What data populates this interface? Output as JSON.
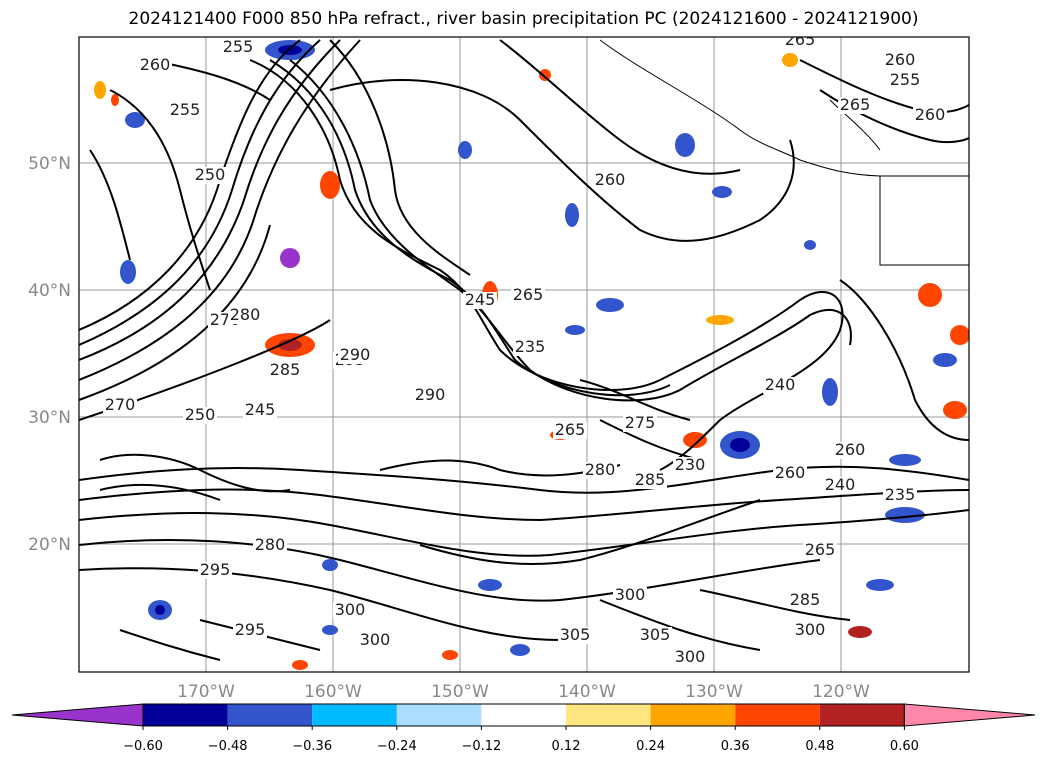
{
  "title": "2024121400 F000 850 hPa refract., river basin precipitation PC (2024121600 - 2024121900)",
  "map": {
    "lat_labels": [
      "50°N",
      "40°N",
      "30°N",
      "20°N"
    ],
    "lon_labels": [
      "170°W",
      "160°W",
      "150°W",
      "140°W",
      "130°W",
      "120°W"
    ],
    "gridlines": true,
    "contour_labels": [
      "255",
      "260",
      "255",
      "265",
      "260",
      "245",
      "250",
      "265",
      "270",
      "280",
      "285",
      "295",
      "290",
      "245",
      "250",
      "235",
      "240",
      "260",
      "265",
      "275",
      "280",
      "285",
      "230",
      "235",
      "240",
      "260",
      "265",
      "270",
      "280",
      "290",
      "295",
      "300",
      "305",
      "300",
      "285",
      "300",
      "295",
      "300",
      "305",
      "300",
      "260",
      "255",
      "265",
      "260"
    ]
  },
  "colorbar": {
    "ticks": [
      "−0.60",
      "−0.48",
      "−0.36",
      "−0.24",
      "−0.12",
      "0.12",
      "0.24",
      "0.36",
      "0.48",
      "0.60"
    ],
    "colors": [
      "#9933cc",
      "#000099",
      "#3355cc",
      "#00bbff",
      "#aaddff",
      "#ffffff",
      "#ffe680",
      "#ffa500",
      "#ff4500",
      "#b22222",
      "#ff88aa"
    ]
  }
}
